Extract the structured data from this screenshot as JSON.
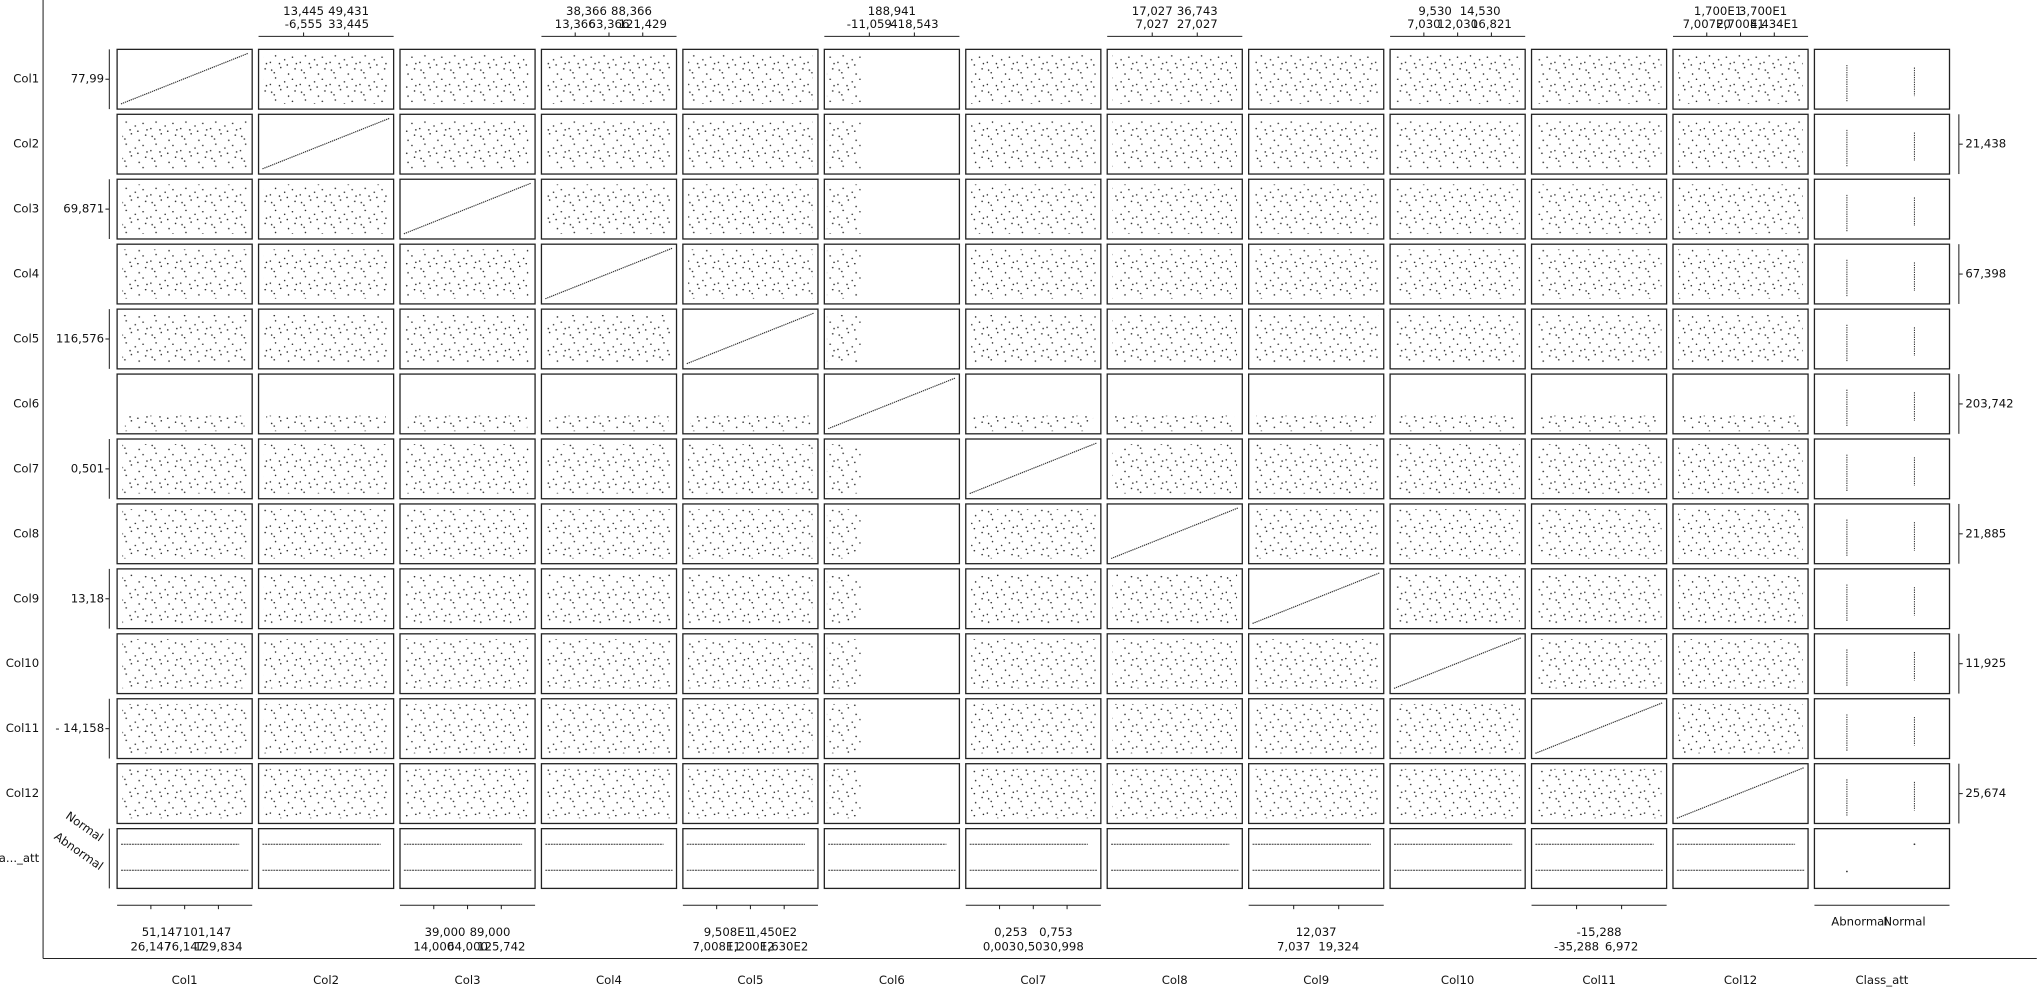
{
  "rows": [
    {
      "name": "Col1",
      "left_label": "77,99"
    },
    {
      "name": "Col2",
      "right_label": "21,438"
    },
    {
      "name": "Col3",
      "left_label": "69,871"
    },
    {
      "name": "Col4",
      "right_label": "67,398"
    },
    {
      "name": "Col5",
      "left_label": "116,576"
    },
    {
      "name": "Col6",
      "right_label": "203,742"
    },
    {
      "name": "Col7",
      "left_label": "0,501"
    },
    {
      "name": "Col8",
      "right_label": "21,885"
    },
    {
      "name": "Col9",
      "left_label": "13,18"
    },
    {
      "name": "Col10",
      "right_label": "11,925"
    },
    {
      "name": "Col11",
      "left_label": "- 14,158"
    },
    {
      "name": "Col12",
      "right_label": "25,674"
    },
    {
      "name": "Cla..._att",
      "left_classes": [
        "Normal",
        "Abnormal"
      ]
    }
  ],
  "columns": [
    {
      "name": "Col1",
      "bottom_upper": [
        "51,147",
        "101,147"
      ],
      "bottom_lower": [
        "26,147",
        "76,147",
        "129,834"
      ]
    },
    {
      "name": "Col2",
      "top_upper": [
        "13,445",
        "49,431"
      ],
      "top_lower": [
        "-6,555",
        "33,445"
      ]
    },
    {
      "name": "Col3",
      "bottom_upper": [
        "39,000",
        "89,000"
      ],
      "bottom_lower": [
        "14,000",
        "64,000",
        "125,742"
      ]
    },
    {
      "name": "Col4",
      "top_upper": [
        "38,366",
        "88,366"
      ],
      "top_lower": [
        "13,366",
        "63,366",
        "121,429"
      ]
    },
    {
      "name": "Col5",
      "bottom_upper": [
        "9,508E1",
        "1,450E2"
      ],
      "bottom_lower": [
        "7,008E1",
        "1,200E2",
        "1,630E2"
      ]
    },
    {
      "name": "Col6",
      "top_upper": [
        "188,941"
      ],
      "top_lower": [
        "-11,059",
        "418,543"
      ]
    },
    {
      "name": "Col7",
      "bottom_upper": [
        "0,253",
        "0,753"
      ],
      "bottom_lower": [
        "0,003",
        "0,503",
        "0,998"
      ]
    },
    {
      "name": "Col8",
      "top_upper": [
        "17,027",
        "36,743"
      ],
      "top_lower": [
        "7,027",
        "27,027"
      ]
    },
    {
      "name": "Col9",
      "bottom_upper": [
        "12,037"
      ],
      "bottom_lower": [
        "7,037",
        "19,324"
      ]
    },
    {
      "name": "Col10",
      "top_upper": [
        "9,530",
        "14,530"
      ],
      "top_lower": [
        "7,030",
        "12,030",
        "16,821"
      ]
    },
    {
      "name": "Col11",
      "bottom_upper": [
        "-15,288"
      ],
      "bottom_lower": [
        "-35,288",
        "6,972"
      ]
    },
    {
      "name": "Col12",
      "top_upper": [
        "1,700E1",
        "3,700E1"
      ],
      "top_lower": [
        "7,007E0",
        "2,700E1",
        "4,434E1"
      ]
    },
    {
      "name": "Class_att",
      "bottom_upper": [
        "Abnormal",
        "Normal"
      ]
    }
  ]
}
